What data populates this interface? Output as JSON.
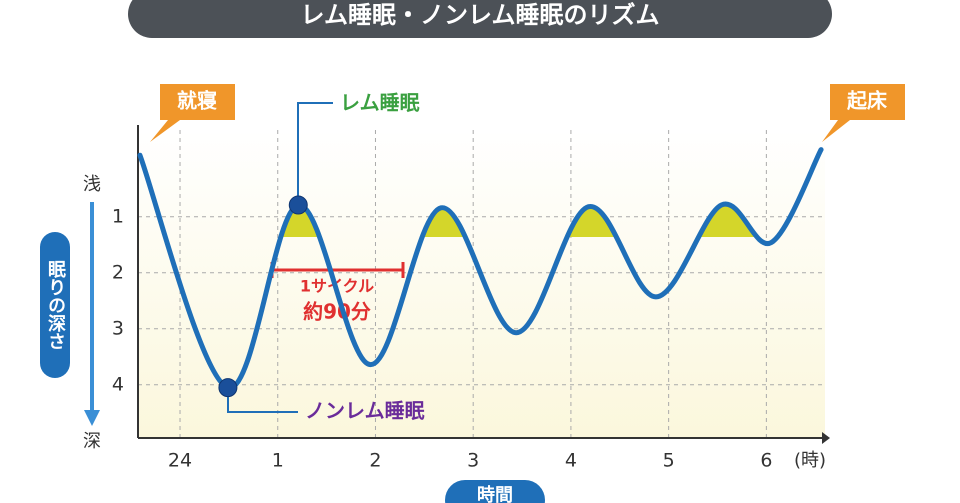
{
  "chart_data": {
    "type": "line",
    "title": "レム睡眠・ノンレム睡眠のリズム",
    "x_label": "時間",
    "x_unit": "(時)",
    "y_label": "眠りの深さ",
    "y_top_label": "浅",
    "y_bottom_label": "深",
    "x": [
      -0.41,
      0.49,
      1.21,
      1.95,
      2.67,
      3.44,
      4.18,
      4.87,
      5.54,
      6.05,
      6.56
    ],
    "values": [
      -0.1,
      4.05,
      0.79,
      3.64,
      0.84,
      3.07,
      0.82,
      2.43,
      0.79,
      1.46,
      -0.2
    ],
    "color": "#1f6fb8",
    "xlim": [
      -0.43,
      6.6
    ],
    "xticks": [
      {
        "value": 0,
        "label": "24"
      },
      1,
      2,
      3,
      4,
      5,
      6
    ],
    "ylim": [
      -0.55,
      4.95
    ],
    "y_inverted": true,
    "yticks": [
      1,
      2,
      3,
      4
    ],
    "grid": true,
    "annotations": {
      "sleep": "就寝",
      "wake": "起床",
      "rem": "レム睡眠",
      "nonrem": "ノンレム睡眠",
      "cycle": "1サイクル",
      "cycle_length": "約90分"
    }
  }
}
